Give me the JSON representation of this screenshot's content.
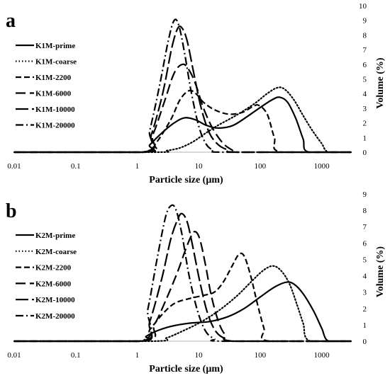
{
  "chart_data": [
    {
      "type": "line",
      "panel_label": "a",
      "xlabel": "Particle size (µm)",
      "ylabel": "Volume (%)",
      "x_scale": "log",
      "xlim": [
        0.01,
        3000
      ],
      "xticks": [
        "0.01",
        "0.1",
        "1",
        "10",
        "100",
        "1000"
      ],
      "ylim": [
        0,
        10
      ],
      "yticks": [
        "0",
        "1",
        "2",
        "3",
        "4",
        "5",
        "6",
        "7",
        "8",
        "9",
        "10"
      ],
      "grid": false,
      "legend_position": "left",
      "series": [
        {
          "name": "K1M-prime",
          "style": "solid",
          "points": [
            [
              0.01,
              0
            ],
            [
              1.25,
              0
            ],
            [
              1.6,
              0.5
            ],
            [
              2.5,
              1.3
            ],
            [
              4,
              2
            ],
            [
              6,
              2.35
            ],
            [
              9,
              2.2
            ],
            [
              13,
              1.85
            ],
            [
              20,
              1.65
            ],
            [
              35,
              1.8
            ],
            [
              60,
              2.4
            ],
            [
              100,
              3.05
            ],
            [
              160,
              3.6
            ],
            [
              210,
              3.75
            ],
            [
              280,
              3.4
            ],
            [
              380,
              2.3
            ],
            [
              500,
              0.9
            ],
            [
              620,
              0
            ],
            [
              3000,
              0
            ]
          ]
        },
        {
          "name": "K1M-coarse",
          "style": "dotted",
          "points": [
            [
              0.01,
              0
            ],
            [
              2,
              0
            ],
            [
              3,
              0.1
            ],
            [
              5,
              0.3
            ],
            [
              8,
              0.7
            ],
            [
              12,
              1.2
            ],
            [
              20,
              1.8
            ],
            [
              40,
              2.5
            ],
            [
              80,
              3.3
            ],
            [
              130,
              4.0
            ],
            [
              190,
              4.4
            ],
            [
              250,
              4.3
            ],
            [
              350,
              3.6
            ],
            [
              500,
              2.5
            ],
            [
              700,
              1.5
            ],
            [
              1000,
              0.6
            ],
            [
              1300,
              0
            ],
            [
              3000,
              0
            ]
          ]
        },
        {
          "name": "K1M-2200",
          "style": "dashed",
          "points": [
            [
              0.01,
              0
            ],
            [
              1.3,
              0
            ],
            [
              2,
              0.6
            ],
            [
              3.5,
              2.2
            ],
            [
              5,
              3.6
            ],
            [
              7,
              4.2
            ],
            [
              9,
              4.0
            ],
            [
              12,
              3.4
            ],
            [
              18,
              2.9
            ],
            [
              30,
              2.6
            ],
            [
              50,
              2.7
            ],
            [
              75,
              3.1
            ],
            [
              95,
              3.2
            ],
            [
              130,
              2.6
            ],
            [
              170,
              1.0
            ],
            [
              220,
              0
            ],
            [
              3000,
              0
            ]
          ]
        },
        {
          "name": "K1M-6000",
          "style": "long-dash",
          "points": [
            [
              0.01,
              0
            ],
            [
              1.2,
              0
            ],
            [
              1.8,
              1.2
            ],
            [
              2.8,
              3.5
            ],
            [
              4,
              5.4
            ],
            [
              5.5,
              6.0
            ],
            [
              7,
              5.6
            ],
            [
              9,
              4.6
            ],
            [
              12,
              3.0
            ],
            [
              17,
              1.6
            ],
            [
              25,
              0.6
            ],
            [
              35,
              0.15
            ],
            [
              45,
              0
            ],
            [
              3000,
              0
            ]
          ]
        },
        {
          "name": "K1M-10000",
          "style": "long-dash-2",
          "points": [
            [
              0.01,
              0
            ],
            [
              1.2,
              0
            ],
            [
              1.7,
              1.2
            ],
            [
              2.6,
              4.0
            ],
            [
              3.6,
              7.0
            ],
            [
              4.5,
              8.4
            ],
            [
              5.3,
              8.5
            ],
            [
              6.5,
              7.6
            ],
            [
              8.5,
              5.2
            ],
            [
              11,
              3.0
            ],
            [
              15,
              1.3
            ],
            [
              21,
              0.5
            ],
            [
              30,
              0.15
            ],
            [
              45,
              0
            ],
            [
              3000,
              0
            ]
          ]
        },
        {
          "name": "K1M-20000",
          "style": "dash-dot",
          "points": [
            [
              0.01,
              0
            ],
            [
              1.2,
              0
            ],
            [
              1.6,
              1.5
            ],
            [
              2.3,
              4.5
            ],
            [
              3.2,
              7.6
            ],
            [
              4.0,
              9.0
            ],
            [
              4.8,
              8.6
            ],
            [
              6,
              6.6
            ],
            [
              7.5,
              4.2
            ],
            [
              10,
              1.8
            ],
            [
              13,
              0.6
            ],
            [
              17,
              0.15
            ],
            [
              25,
              0
            ],
            [
              3000,
              0
            ]
          ]
        }
      ]
    },
    {
      "type": "line",
      "panel_label": "b",
      "xlabel": "Particle size (µm)",
      "ylabel": "Volume (%)",
      "x_scale": "log",
      "xlim": [
        0.01,
        3000
      ],
      "xticks": [
        "0.01",
        "0.1",
        "1",
        "10",
        "100",
        "1000"
      ],
      "ylim": [
        0,
        9
      ],
      "yticks": [
        "0",
        "1",
        "2",
        "3",
        "4",
        "5",
        "6",
        "7",
        "8",
        "9"
      ],
      "grid": false,
      "legend_position": "left",
      "series": [
        {
          "name": "K2M-prime",
          "style": "solid",
          "points": [
            [
              0.01,
              0
            ],
            [
              1.05,
              0
            ],
            [
              1.4,
              0.3
            ],
            [
              2,
              0.6
            ],
            [
              3.5,
              0.9
            ],
            [
              7,
              1.1
            ],
            [
              15,
              1.2
            ],
            [
              30,
              1.5
            ],
            [
              55,
              2.0
            ],
            [
              100,
              2.7
            ],
            [
              170,
              3.3
            ],
            [
              260,
              3.6
            ],
            [
              350,
              3.5
            ],
            [
              500,
              2.9
            ],
            [
              750,
              1.8
            ],
            [
              1000,
              0.8
            ],
            [
              1300,
              0
            ],
            [
              3000,
              0
            ]
          ]
        },
        {
          "name": "K2M-coarse",
          "style": "dotted",
          "points": [
            [
              0.01,
              0
            ],
            [
              1.8,
              0
            ],
            [
              3,
              0.2
            ],
            [
              5,
              0.55
            ],
            [
              10,
              1.1
            ],
            [
              20,
              1.8
            ],
            [
              40,
              2.7
            ],
            [
              70,
              3.6
            ],
            [
              110,
              4.3
            ],
            [
              160,
              4.6
            ],
            [
              220,
              4.3
            ],
            [
              300,
              3.5
            ],
            [
              400,
              2.2
            ],
            [
              500,
              1.1
            ],
            [
              650,
              0
            ],
            [
              3000,
              0
            ]
          ]
        },
        {
          "name": "K2M-2200",
          "style": "dashed",
          "points": [
            [
              0.01,
              0
            ],
            [
              1.1,
              0
            ],
            [
              1.6,
              0.7
            ],
            [
              2.5,
              1.6
            ],
            [
              4,
              2.3
            ],
            [
              7,
              2.6
            ],
            [
              12,
              2.8
            ],
            [
              18,
              3.0
            ],
            [
              25,
              3.6
            ],
            [
              35,
              4.6
            ],
            [
              45,
              5.3
            ],
            [
              55,
              5.2
            ],
            [
              70,
              4.0
            ],
            [
              90,
              2.3
            ],
            [
              115,
              0.8
            ],
            [
              140,
              0
            ],
            [
              3000,
              0
            ]
          ]
        },
        {
          "name": "K2M-6000",
          "style": "long-dash",
          "points": [
            [
              0.01,
              0
            ],
            [
              1.2,
              0
            ],
            [
              1.9,
              1.0
            ],
            [
              3,
              2.6
            ],
            [
              4.5,
              4.2
            ],
            [
              6,
              5.5
            ],
            [
              7.5,
              6.4
            ],
            [
              8.8,
              6.7
            ],
            [
              10.5,
              6.2
            ],
            [
              13,
              4.6
            ],
            [
              16,
              2.8
            ],
            [
              21,
              1.2
            ],
            [
              27,
              0.4
            ],
            [
              40,
              0
            ],
            [
              3000,
              0
            ]
          ]
        },
        {
          "name": "K2M-10000",
          "style": "long-dash-2",
          "points": [
            [
              0.01,
              0
            ],
            [
              1.1,
              0
            ],
            [
              1.6,
              1.2
            ],
            [
              2.5,
              3.8
            ],
            [
              3.5,
              6.2
            ],
            [
              4.5,
              7.4
            ],
            [
              5.3,
              7.8
            ],
            [
              6.5,
              7.3
            ],
            [
              8,
              5.8
            ],
            [
              10.5,
              3.6
            ],
            [
              14,
              1.7
            ],
            [
              19,
              0.6
            ],
            [
              27,
              0.15
            ],
            [
              40,
              0
            ],
            [
              3000,
              0
            ]
          ]
        },
        {
          "name": "K2M-20000",
          "style": "dash-dot",
          "points": [
            [
              0.01,
              0
            ],
            [
              1.1,
              0
            ],
            [
              1.5,
              2.0
            ],
            [
              2.1,
              5.0
            ],
            [
              2.9,
              7.6
            ],
            [
              3.6,
              8.3
            ],
            [
              4.3,
              8.0
            ],
            [
              5.3,
              6.6
            ],
            [
              7,
              4.0
            ],
            [
              9.5,
              1.9
            ],
            [
              13,
              0.6
            ],
            [
              18,
              0.15
            ],
            [
              25,
              0
            ],
            [
              3000,
              0
            ]
          ]
        }
      ]
    }
  ]
}
